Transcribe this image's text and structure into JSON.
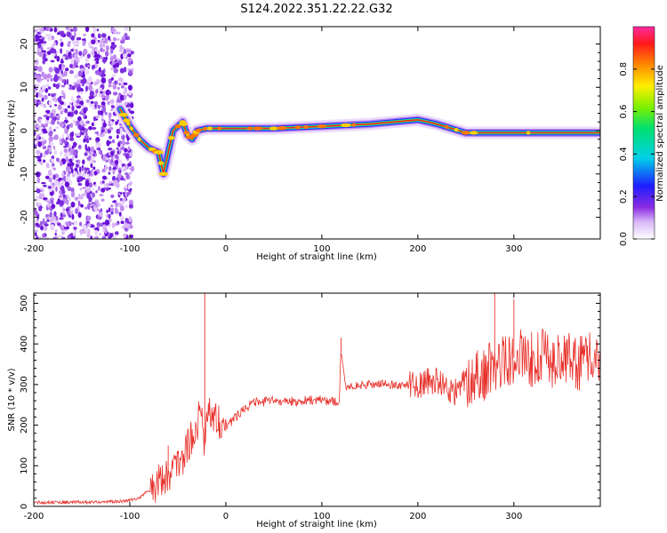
{
  "title": "S124.2022.351.22.22.G32",
  "chart_data": [
    {
      "type": "heatmap",
      "xlabel": "Height of straight line (km)",
      "ylabel": "Frequency (Hz)",
      "xlim": [
        -200,
        390
      ],
      "ylim": [
        -25,
        24
      ],
      "x_ticks": [
        -200,
        -100,
        0,
        100,
        200,
        300
      ],
      "y_ticks": [
        -20,
        -10,
        0,
        10,
        20
      ],
      "colorbar": {
        "label": "Normalized spectral amplitude",
        "range": [
          0,
          1
        ],
        "ticks": [
          "0.0",
          "0.2",
          "0.4",
          "0.6",
          "0.8"
        ],
        "tick_values": [
          0.0,
          0.2,
          0.4,
          0.6,
          0.8
        ]
      },
      "ridge": {
        "x": [
          -110,
          -100,
          -90,
          -80,
          -70,
          -65,
          -55,
          -50,
          -45,
          -40,
          -35,
          -30,
          -20,
          0,
          50,
          100,
          150,
          200,
          220,
          250,
          300,
          390
        ],
        "y": [
          5,
          1,
          -2,
          -4,
          -5,
          -10,
          0,
          1,
          2,
          -1,
          -2,
          0,
          0.5,
          0.5,
          0.5,
          1,
          1.5,
          2.5,
          1.5,
          -0.5,
          -0.5,
          -0.5
        ]
      },
      "noise_region_x": [
        -200,
        -97
      ]
    },
    {
      "type": "line",
      "xlabel": "Height of straight line (km)",
      "ylabel": "SNR (10 * v/v)",
      "xlim": [
        -200,
        390
      ],
      "ylim": [
        0,
        525
      ],
      "x_ticks": [
        -200,
        -100,
        0,
        100,
        200,
        300
      ],
      "y_ticks": [
        0,
        100,
        200,
        300,
        400,
        500
      ],
      "series": [
        {
          "color": "#e8322c",
          "x": [
            -200,
            -150,
            -110,
            -90,
            -75,
            -60,
            -45,
            -35,
            -25,
            -22,
            -20,
            -10,
            0,
            10,
            20,
            30,
            50,
            70,
            90,
            110,
            118,
            120,
            122,
            125,
            140,
            160,
            180,
            200,
            210,
            220,
            230,
            240,
            250,
            260,
            270,
            280,
            290,
            300,
            310,
            320,
            330,
            340,
            350,
            360,
            370,
            380,
            390
          ],
          "y": [
            10,
            10,
            12,
            20,
            50,
            80,
            120,
            170,
            240,
            150,
            240,
            220,
            195,
            220,
            245,
            255,
            260,
            258,
            262,
            260,
            255,
            380,
            340,
            295,
            298,
            302,
            298,
            300,
            305,
            310,
            290,
            280,
            310,
            320,
            330,
            345,
            360,
            365,
            370,
            362,
            368,
            360,
            365,
            362,
            350,
            360,
            375
          ]
        }
      ],
      "spikes": [
        {
          "x": -22,
          "y": 525
        },
        {
          "x": -60,
          "y": 150
        },
        {
          "x": 120,
          "y": 415
        },
        {
          "x": 280,
          "y": 525
        },
        {
          "x": 300,
          "y": 510
        }
      ]
    }
  ]
}
